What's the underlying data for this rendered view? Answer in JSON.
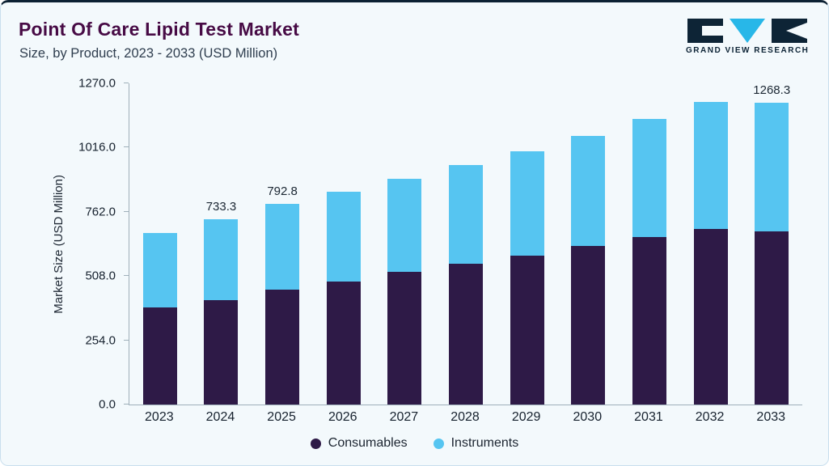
{
  "header": {
    "title": "Point Of Care Lipid Test Market",
    "subtitle": "Size, by Product, 2023 - 2033 (USD Million)",
    "logo_text": "GRAND VIEW RESEARCH"
  },
  "colors": {
    "consumables": "#2E1A47",
    "instruments": "#56C5F1",
    "title_text": "#470B45",
    "logo_navy": "#0D2436",
    "logo_cyan": "#28B7E8",
    "card_background": "#F3F9FC"
  },
  "chart_data": {
    "type": "bar",
    "stacked": true,
    "title": "Point Of Care Lipid Test Market Size, by Product, 2023 - 2033 (USD Million)",
    "ylabel": "Market Size (USD Million)",
    "ylim": [
      0,
      1270
    ],
    "yticks": [
      0,
      254,
      508,
      762,
      1016,
      1270
    ],
    "ytick_labels": [
      "0.0",
      "254.0",
      "508.0",
      "762.0",
      "1016.0",
      "1270.0"
    ],
    "categories": [
      "2023",
      "2024",
      "2025",
      "2026",
      "2027",
      "2028",
      "2029",
      "2030",
      "2031",
      "2032",
      "2033"
    ],
    "series": [
      {
        "name": "Consumables",
        "color": "#2E1A47",
        "values": [
          384.2,
          413.0,
          454.1,
          486.3,
          523.9,
          557.2,
          589.4,
          626.9,
          661.8,
          694.3,
          729.1
        ]
      },
      {
        "name": "Instruments",
        "color": "#56C5F1",
        "values": [
          294.2,
          320.3,
          338.7,
          354.5,
          367.8,
          388.4,
          413.4,
          436.6,
          466.1,
          501.8,
          539.2
        ]
      }
    ],
    "totals": [
      678.4,
      733.3,
      792.8,
      840.8,
      891.7,
      945.6,
      1002.8,
      1063.5,
      1127.9,
      1196.1,
      1268.3
    ],
    "bar_labels": [
      "",
      "733.3",
      "792.8",
      "",
      "",
      "",
      "",
      "",
      "",
      "",
      "1268.3"
    ],
    "legend_position": "bottom",
    "grid": false
  }
}
